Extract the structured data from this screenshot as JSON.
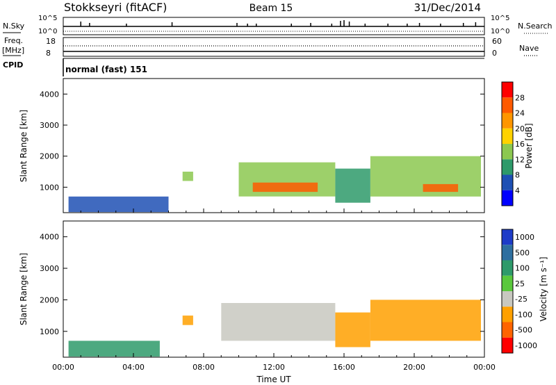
{
  "header": {
    "station": "Stokkseyri (fitACF)",
    "beam": "Beam 15",
    "date": "31/Dec/2014"
  },
  "top_panels": {
    "nsky_label": "N.Sky",
    "nsky_ticks": [
      "10^5",
      "10^0"
    ],
    "nsearch_label": "N.Search",
    "nsearch_ticks": [
      "10^5",
      "10^0"
    ],
    "freq_label_1": "Freq.",
    "freq_label_2": "[MHz]",
    "freq_ticks": [
      "18",
      "8"
    ],
    "nave_label": "Nave",
    "nave_ticks": [
      "60",
      "0"
    ],
    "cpid_label": "CPID",
    "cpid_value": "normal (fast) 151"
  },
  "axes": {
    "ylabel": "Slant Range [km]",
    "yticks": [
      "4000",
      "3000",
      "2000",
      "1000"
    ],
    "xlabel": "Time UT",
    "xticks": [
      "00:00",
      "04:00",
      "08:00",
      "12:00",
      "16:00",
      "20:00",
      "00:00"
    ]
  },
  "power_scale": {
    "label": "Power [dB]",
    "ticks": [
      "28",
      "24",
      "20",
      "16",
      "12",
      "8",
      "4"
    ],
    "colors": [
      "#ff0000",
      "#ff5a00",
      "#ff9600",
      "#ffd200",
      "#8cc850",
      "#2e9a6a",
      "#1e50b4",
      "#0000ff"
    ]
  },
  "velocity_scale": {
    "label": "Velocity [m s⁻¹]",
    "ticks": [
      "1000",
      "500",
      "100",
      "25",
      "-25",
      "-100",
      "-500",
      "-1000"
    ],
    "colors": [
      "#1e3cc8",
      "#2e6fa0",
      "#2e9a6a",
      "#5ac83c",
      "#c8c8c0",
      "#ffa000",
      "#ff6400",
      "#ff0000"
    ]
  },
  "chart_data": [
    {
      "type": "heatmap",
      "title": "Power",
      "x_range": [
        "00:00",
        "24:00"
      ],
      "ylim": [
        180,
        4500
      ],
      "colorbar_label": "Power [dB]",
      "colorbar_range": [
        0,
        32
      ],
      "echo_regions": [
        {
          "t_start": 0.3,
          "t_end": 6.0,
          "range_low": 200,
          "range_high": 700,
          "power_db": 8
        },
        {
          "t_start": 6.8,
          "t_end": 7.4,
          "range_low": 1200,
          "range_high": 1500,
          "power_db": 14
        },
        {
          "t_start": 10.0,
          "t_end": 15.5,
          "range_low": 700,
          "range_high": 1800,
          "power_db": 16
        },
        {
          "t_start": 10.8,
          "t_end": 14.5,
          "range_low": 850,
          "range_high": 1150,
          "power_db": 26
        },
        {
          "t_start": 15.5,
          "t_end": 17.5,
          "range_low": 500,
          "range_high": 1600,
          "power_db": 12
        },
        {
          "t_start": 17.5,
          "t_end": 23.8,
          "range_low": 700,
          "range_high": 2000,
          "power_db": 16
        },
        {
          "t_start": 20.5,
          "t_end": 22.5,
          "range_low": 850,
          "range_high": 1100,
          "power_db": 26
        }
      ]
    },
    {
      "type": "heatmap",
      "title": "Velocity",
      "x_range": [
        "00:00",
        "24:00"
      ],
      "ylim": [
        180,
        4500
      ],
      "colorbar_label": "Velocity [m s⁻¹]",
      "colorbar_range": [
        -1000,
        1000
      ],
      "echo_regions": [
        {
          "t_start": 0.3,
          "t_end": 5.5,
          "range_low": 200,
          "range_high": 700,
          "velocity": 100
        },
        {
          "t_start": 6.8,
          "t_end": 7.4,
          "range_low": 1200,
          "range_high": 1500,
          "velocity": -100
        },
        {
          "t_start": 9.0,
          "t_end": 15.5,
          "range_low": 700,
          "range_high": 1900,
          "velocity": 0
        },
        {
          "t_start": 15.5,
          "t_end": 17.5,
          "range_low": 500,
          "range_high": 1600,
          "velocity": -100
        },
        {
          "t_start": 17.5,
          "t_end": 23.8,
          "range_low": 700,
          "range_high": 2000,
          "velocity": -100
        }
      ]
    }
  ]
}
